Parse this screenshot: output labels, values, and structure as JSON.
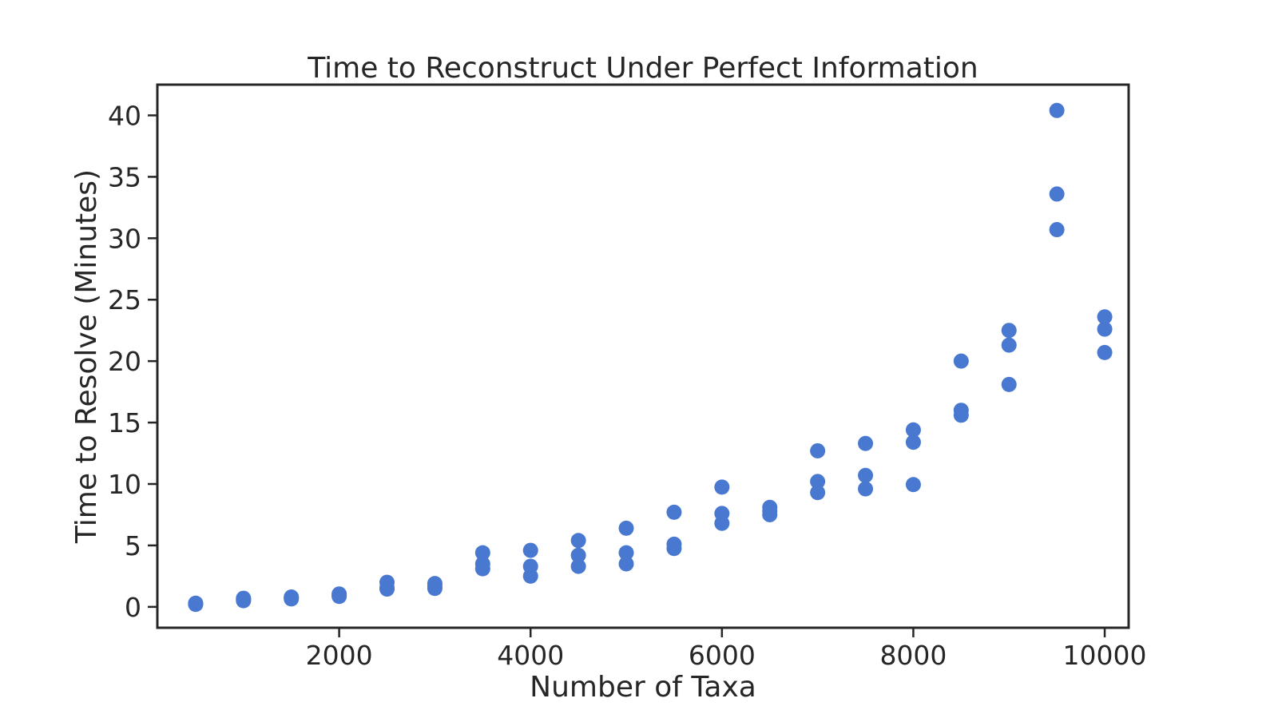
{
  "chart_data": {
    "type": "scatter",
    "title": "Time to Reconstruct Under Perfect Information",
    "xlabel": "Number of Taxa",
    "ylabel": "Time to Resolve (Minutes)",
    "xlim": [
      100,
      10250
    ],
    "ylim": [
      -1.7,
      42.5
    ],
    "xticks": [
      2000,
      4000,
      6000,
      8000,
      10000
    ],
    "yticks": [
      0,
      5,
      10,
      15,
      20,
      25,
      30,
      35,
      40
    ],
    "grid": false,
    "marker_color": "#4878d0",
    "series": [
      {
        "points": [
          [
            500,
            0.2
          ],
          [
            500,
            0.25
          ],
          [
            500,
            0.3
          ],
          [
            1000,
            0.5
          ],
          [
            1000,
            0.6
          ],
          [
            1000,
            0.7
          ],
          [
            1500,
            0.65
          ],
          [
            1500,
            0.75
          ],
          [
            1500,
            0.8
          ],
          [
            2000,
            0.85
          ],
          [
            2000,
            0.95
          ],
          [
            2000,
            1.05
          ],
          [
            2500,
            1.45
          ],
          [
            2500,
            1.55
          ],
          [
            2500,
            2.0
          ],
          [
            3000,
            1.5
          ],
          [
            3000,
            1.7
          ],
          [
            3000,
            1.9
          ],
          [
            3500,
            3.1
          ],
          [
            3500,
            3.5
          ],
          [
            3500,
            4.4
          ],
          [
            4000,
            2.5
          ],
          [
            4000,
            3.3
          ],
          [
            4000,
            4.6
          ],
          [
            4500,
            3.3
          ],
          [
            4500,
            4.2
          ],
          [
            4500,
            5.4
          ],
          [
            5000,
            3.5
          ],
          [
            5000,
            4.4
          ],
          [
            5000,
            6.4
          ],
          [
            5500,
            4.75
          ],
          [
            5500,
            5.1
          ],
          [
            5500,
            7.7
          ],
          [
            6000,
            6.8
          ],
          [
            6000,
            7.6
          ],
          [
            6000,
            9.75
          ],
          [
            6500,
            7.5
          ],
          [
            6500,
            7.8
          ],
          [
            6500,
            8.1
          ],
          [
            7000,
            9.3
          ],
          [
            7000,
            10.2
          ],
          [
            7000,
            12.7
          ],
          [
            7500,
            9.6
          ],
          [
            7500,
            10.7
          ],
          [
            7500,
            13.3
          ],
          [
            8000,
            9.95
          ],
          [
            8000,
            13.4
          ],
          [
            8000,
            14.4
          ],
          [
            8500,
            15.6
          ],
          [
            8500,
            16.0
          ],
          [
            8500,
            20.0
          ],
          [
            9000,
            18.1
          ],
          [
            9000,
            21.3
          ],
          [
            9000,
            22.5
          ],
          [
            9500,
            30.7
          ],
          [
            9500,
            33.6
          ],
          [
            9500,
            40.4
          ],
          [
            10000,
            20.7
          ],
          [
            10000,
            22.6
          ],
          [
            10000,
            23.6
          ]
        ]
      }
    ]
  }
}
